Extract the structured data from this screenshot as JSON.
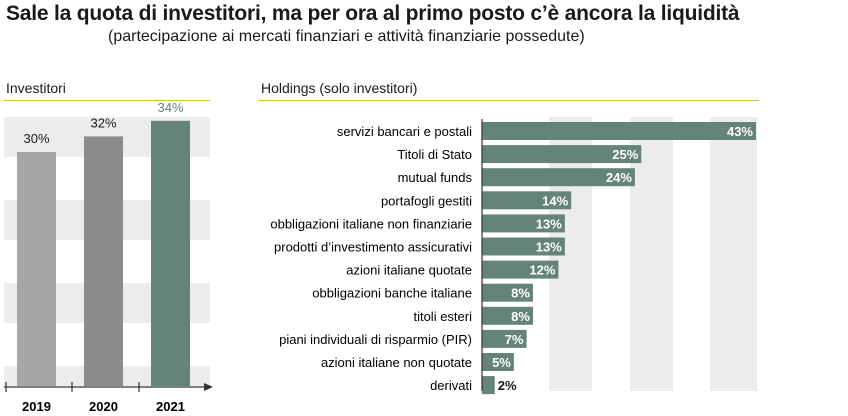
{
  "header": {
    "title": "Sale la quota di investitori, ma per ora al primo posto c’è ancora la liquidità",
    "subtitle": "(partecipazione ai mercati finanziari e attività finanziarie possedute)"
  },
  "colors": {
    "bar_gray_light": "#a6a8a5",
    "bar_gray_dark": "#8b8d8a",
    "bar_green": "#64847a",
    "accent_text_green": "#64847a",
    "band_gray": "#ececec",
    "rule_yellow": "#c9c632"
  },
  "chart_data": [
    {
      "type": "bar",
      "title": "Investitori",
      "categories": [
        "2019",
        "2020",
        "2021"
      ],
      "values": [
        30,
        32,
        34
      ],
      "value_labels": [
        "30%",
        "32%",
        "34%"
      ],
      "ylim": [
        0,
        42
      ],
      "grid": false
    },
    {
      "type": "bar",
      "orientation": "horizontal",
      "title": "Holdings (solo investitori)",
      "categories": [
        "servizi bancari e postali",
        "Titoli di Stato",
        "mutual funds",
        "portafogli gestiti",
        "obbligazioni italiane non finanziarie",
        "prodotti d’investimento assicurativi",
        "azioni italiane quotate",
        "obbligazioni banche italiane",
        "titoli esteri",
        "piani individuali di risparmio (PIR)",
        "azioni italiane non quotate",
        "derivati"
      ],
      "values": [
        43,
        25,
        24,
        14,
        13,
        13,
        12,
        8,
        8,
        7,
        5,
        2
      ],
      "value_labels": [
        "43%",
        "25%",
        "24%",
        "14%",
        "13%",
        "13%",
        "12%",
        "8%",
        "8%",
        "7%",
        "5%",
        "2%"
      ],
      "xlim": [
        0,
        45
      ],
      "grid": false
    }
  ]
}
